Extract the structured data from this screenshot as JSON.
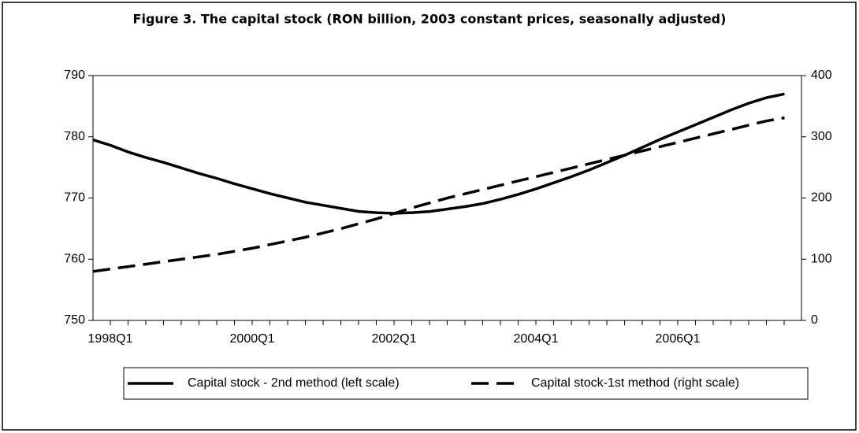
{
  "chart_data": {
    "type": "line",
    "title": "Figure 3. The capital stock (RON billion, 2003 constant prices, seasonally adjusted)",
    "categories": [
      "1998Q1",
      null,
      null,
      null,
      null,
      null,
      null,
      null,
      "2000Q1",
      null,
      null,
      null,
      null,
      null,
      null,
      null,
      "2002Q1",
      null,
      null,
      null,
      null,
      null,
      null,
      null,
      "2004Q1",
      null,
      null,
      null,
      null,
      null,
      null,
      null,
      "2006Q1",
      null,
      null,
      null,
      null,
      null,
      null,
      null
    ],
    "series": [
      {
        "name": "Capital stock - 2nd method (left scale)",
        "color": "#000000",
        "line_style": "solid",
        "values": [
          779.5,
          778.6,
          777.5,
          776.6,
          775.8,
          774.9,
          774.0,
          773.2,
          772.3,
          771.5,
          770.7,
          770.0,
          769.3,
          768.8,
          768.3,
          767.8,
          767.6,
          767.5,
          767.6,
          767.8,
          768.2,
          768.6,
          769.1,
          769.8,
          770.6,
          771.5,
          772.5,
          773.5,
          774.6,
          775.8,
          777.0,
          778.3,
          779.6,
          780.8,
          782.0,
          783.2,
          784.4,
          785.5,
          786.4,
          787.0
        ]
      },
      {
        "name": "Capital stock-1st method (right scale)",
        "color": "#000000",
        "line_style": "dashed",
        "axis": "y2",
        "values": [
          80,
          84,
          88,
          92,
          96,
          100,
          104,
          108,
          113,
          118,
          124,
          130,
          136,
          143,
          150,
          158,
          166,
          175,
          184,
          192,
          200,
          207,
          214,
          221,
          228,
          235,
          242,
          249,
          256,
          263,
          270,
          277,
          284,
          291,
          298,
          305,
          312,
          319,
          326,
          331
        ]
      }
    ],
    "ylim": [
      750,
      790
    ],
    "yticks": [
      750,
      760,
      770,
      780,
      790
    ],
    "y2lim": [
      0,
      400
    ],
    "y2ticks": [
      0,
      100,
      200,
      300,
      400
    ],
    "grid": false,
    "legend": "bottom"
  }
}
